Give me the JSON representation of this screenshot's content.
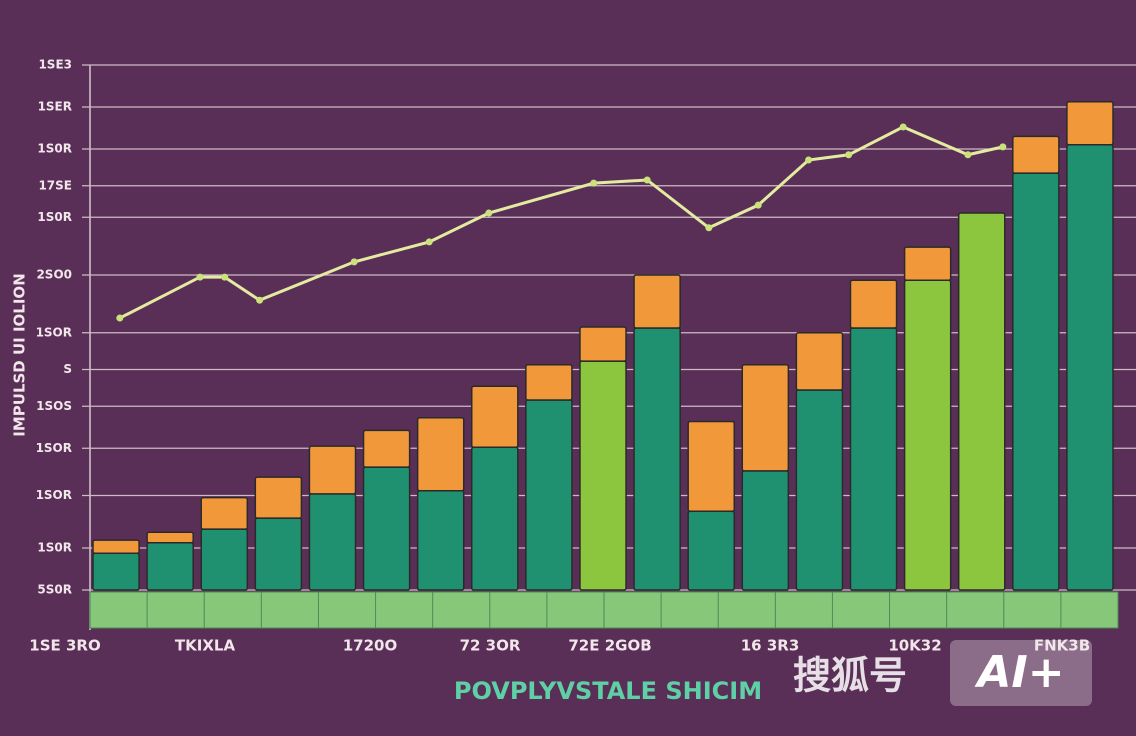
{
  "chart_data": {
    "type": "bar",
    "title": "POVPLYVSTALE SHICIM",
    "y_label": "IMPULSD UI IOLION",
    "x_labels": [
      "1SE 3RO",
      "TKIXLA",
      "1720O",
      "72 3OR",
      "72E 2GOB",
      "16 3R3",
      "10K32",
      "FNK3B"
    ],
    "ylim": [
      0,
      100
    ],
    "yticks": [
      {
        "value": 0,
        "label": "5S0R"
      },
      {
        "value": 8,
        "label": "1S0R"
      },
      {
        "value": 18,
        "label": "1SOR"
      },
      {
        "value": 27,
        "label": "1SOR"
      },
      {
        "value": 35,
        "label": "1SOS"
      },
      {
        "value": 42,
        "label": "S"
      },
      {
        "value": 49,
        "label": "1SOR"
      },
      {
        "value": 60,
        "label": "2SO0"
      },
      {
        "value": 71,
        "label": "1S0R"
      },
      {
        "value": 77,
        "label": "17SE"
      },
      {
        "value": 84,
        "label": "1S0R"
      },
      {
        "value": 92,
        "label": "1SER"
      },
      {
        "value": 100,
        "label": "1SE3"
      }
    ],
    "grid": true,
    "series": [
      {
        "color": "#1f9070",
        "colors": [
          "#1f9070",
          "#1f9070",
          "#1f9070",
          "#1f9070",
          "#1f9070",
          "#1f9070",
          "#1f9070",
          "#1f9070",
          "#1f9070",
          "#8cc63f",
          "#1f9070",
          "#1f9070",
          "#1f9070",
          "#1f9070",
          "#1f9070",
          "#8cc63f",
          "#8cc63f",
          "#1f9070",
          "#1f9070"
        ],
        "values": [
          7,
          9,
          11.6,
          13.7,
          18.3,
          23.4,
          18.9,
          27.2,
          36.2,
          43.6,
          49.9,
          15,
          22.7,
          38.1,
          49.9,
          59,
          71.8,
          79.4,
          84.8
        ]
      },
      {
        "color": "#f0983a",
        "values": [
          2.5,
          2,
          6,
          7.8,
          9.1,
          7,
          13.9,
          11.6,
          6.7,
          6.5,
          10.1,
          17.1,
          20.2,
          10.9,
          9.1,
          6.3,
          0,
          7,
          8.2
        ]
      }
    ],
    "line": {
      "color": "#e3eba0",
      "xlim": [
        0,
        100
      ],
      "x": [
        2.9,
        10.7,
        13.1,
        16.5,
        25.7,
        33,
        38.8,
        49,
        54.2,
        60.2,
        65,
        69.9,
        73.8,
        79.1,
        85.4,
        88.8
      ],
      "values": [
        51.8,
        59.6,
        59.6,
        55.2,
        62.5,
        66.3,
        71.8,
        77.5,
        78.1,
        69,
        73.3,
        81.9,
        82.9,
        88.2,
        82.9,
        84.4
      ]
    },
    "watermark": [
      "搜狐号",
      "AI+"
    ]
  }
}
